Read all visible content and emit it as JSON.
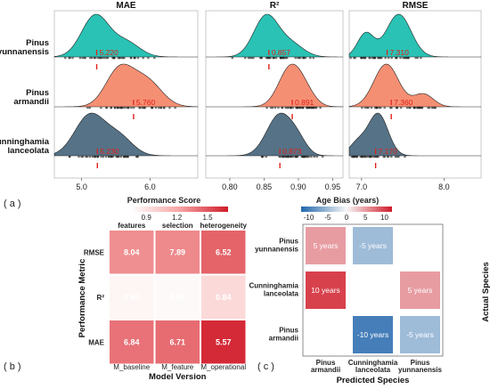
{
  "chart_data": [
    {
      "type": "ridgeline",
      "panel_label": "( a )",
      "species": [
        "Pinus\nyunnanensis",
        "Pinus\narmandii",
        "Cunninghamia\nlanceolata"
      ],
      "species_colors": [
        "#1fbfb0",
        "#f4896b",
        "#4d6a80"
      ],
      "facets": [
        {
          "title": "MAE",
          "xlim": [
            4.6,
            6.7
          ],
          "ticks": [
            5.0,
            6.0
          ],
          "tick_labels": [
            "5.0",
            "6.0"
          ],
          "means": [
            5.22,
            5.76,
            5.23
          ],
          "mean_labels": [
            "5.220",
            "5.760",
            "5.230"
          ],
          "peaks": [
            [
              {
                "c": 5.2,
                "s": 0.2,
                "h": 1.0
              },
              {
                "c": 5.65,
                "s": 0.2,
                "h": 0.35
              }
            ],
            [
              {
                "c": 5.55,
                "s": 0.2,
                "h": 0.85
              },
              {
                "c": 5.95,
                "s": 0.22,
                "h": 0.6
              }
            ],
            [
              {
                "c": 5.12,
                "s": 0.22,
                "h": 0.9
              },
              {
                "c": 5.55,
                "s": 0.2,
                "h": 0.4
              }
            ]
          ]
        },
        {
          "title": "R²",
          "xlim": [
            0.765,
            0.965
          ],
          "ticks": [
            0.8,
            0.85,
            0.9,
            0.95
          ],
          "tick_labels": [
            "0.80",
            "0.85",
            "0.90",
            "0.95"
          ],
          "means": [
            0.857,
            0.891,
            0.873
          ],
          "mean_labels": [
            "0.857",
            "0.891",
            "0.873"
          ],
          "peaks": [
            [
              {
                "c": 0.853,
                "s": 0.018,
                "h": 1.0
              },
              {
                "c": 0.89,
                "s": 0.018,
                "h": 0.3
              }
            ],
            [
              {
                "c": 0.888,
                "s": 0.017,
                "h": 1.0
              },
              {
                "c": 0.91,
                "s": 0.015,
                "h": 0.3
              }
            ],
            [
              {
                "c": 0.873,
                "s": 0.019,
                "h": 1.0
              },
              {
                "c": 0.9,
                "s": 0.013,
                "h": 0.25
              }
            ]
          ]
        },
        {
          "title": "RMSE",
          "xlim": [
            6.85,
            8.45
          ],
          "ticks": [
            7.0,
            8.0
          ],
          "tick_labels": [
            "7.0",
            "8.0"
          ],
          "means": [
            7.31,
            7.36,
            7.17
          ],
          "mean_labels": [
            "7.310",
            "7.360",
            "7.170"
          ],
          "peaks": [
            [
              {
                "c": 7.05,
                "s": 0.1,
                "h": 0.55
              },
              {
                "c": 7.45,
                "s": 0.15,
                "h": 1.0
              }
            ],
            [
              {
                "c": 7.3,
                "s": 0.15,
                "h": 1.0
              },
              {
                "c": 7.75,
                "s": 0.12,
                "h": 0.3
              }
            ],
            [
              {
                "c": 7.2,
                "s": 0.12,
                "h": 1.0
              },
              {
                "c": 6.95,
                "s": 0.1,
                "h": 0.3
              }
            ]
          ]
        }
      ]
    },
    {
      "type": "heatmap",
      "panel_label": "( b )",
      "legend_title": "Performance Score",
      "legend_ticks": [
        0.9,
        1.2,
        1.5
      ],
      "legend_tick_labels": [
        "0.9",
        "1.2",
        "1.5"
      ],
      "legend_range": [
        0.75,
        1.7
      ],
      "top_labels": [
        "features",
        "selection",
        "heterogeneity"
      ],
      "x_categories": [
        "M_baseline",
        "M_feature",
        "M_operational"
      ],
      "y_categories": [
        "RMSE",
        "R²",
        "MAE"
      ],
      "xlabel": "Model Version",
      "ylabel": "Performance Metric",
      "values": [
        [
          8.04,
          7.89,
          6.52
        ],
        [
          0.85,
          0.89,
          0.84
        ],
        [
          6.84,
          6.71,
          5.57
        ]
      ],
      "value_labels": [
        [
          "8.04",
          "7.89",
          "6.52"
        ],
        [
          "0.85",
          "0.89",
          "0.84"
        ],
        [
          "6.84",
          "6.71",
          "5.57"
        ]
      ],
      "scores": [
        [
          1.3,
          1.32,
          1.45
        ],
        [
          0.8,
          0.78,
          0.95
        ],
        [
          1.4,
          1.42,
          1.65
        ]
      ]
    },
    {
      "type": "heatmap",
      "panel_label": "( c )",
      "legend_title": "Age Bias (years)",
      "legend_ticks": [
        -10,
        -5,
        0,
        5,
        10
      ],
      "legend_tick_labels": [
        "-10",
        "-5",
        "0",
        "5",
        "10"
      ],
      "x_categories": [
        "Pinus\narmandii",
        "Cunninghamia\nlanceolata",
        "Pinus\nyunnanensis"
      ],
      "y_categories": [
        "Pinus\nyunnanensis",
        "Cunninghamia\nlanceolata",
        "Pinus\narmandii"
      ],
      "xlabel": "Predicted Species",
      "ylabel": "Actual Species",
      "values": [
        [
          5,
          -5,
          null
        ],
        [
          10,
          null,
          5
        ],
        [
          null,
          -10,
          -5
        ]
      ],
      "value_labels": [
        [
          "5 years",
          "-5 years",
          ""
        ],
        [
          "10 years",
          "",
          "5 years"
        ],
        [
          "",
          "-10 years",
          "-5 years"
        ]
      ]
    }
  ]
}
